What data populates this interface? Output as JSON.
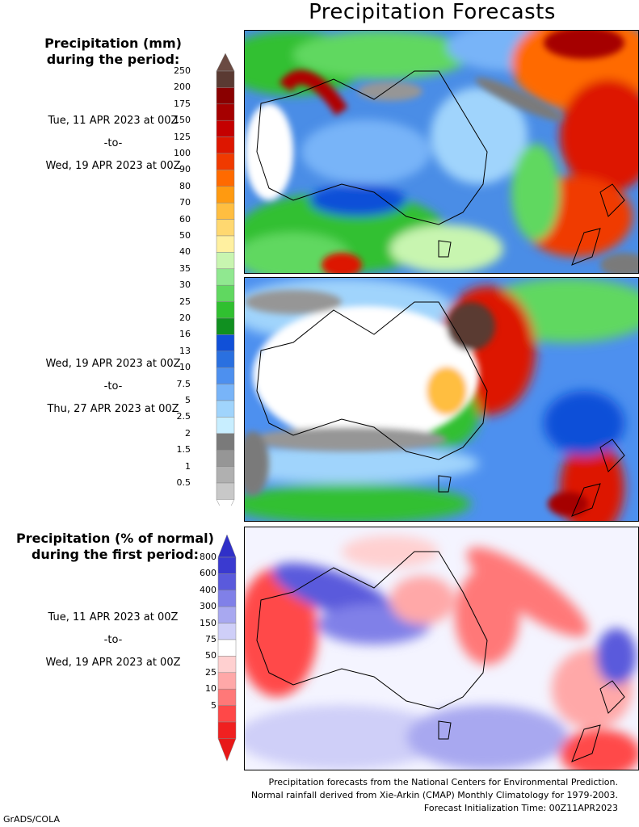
{
  "title": "Precipitation Forecasts",
  "mm_heading": [
    "Precipitation (mm)",
    "during the period:"
  ],
  "period1": {
    "start": "Tue, 11 APR 2023 at 00Z",
    "sep": "-to-",
    "end": "Wed, 19 APR 2023 at 00Z"
  },
  "period2": {
    "start": "Wed, 19 APR 2023 at 00Z",
    "sep": "-to-",
    "end": "Thu, 27 APR 2023 at 00Z"
  },
  "pct_heading": [
    "Precipitation (% of normal)",
    "during the first period:"
  ],
  "period3": {
    "start": "Tue, 11 APR 2023 at 00Z",
    "sep": "-to-",
    "end": "Wed, 19 APR 2023 at 00Z"
  },
  "mm_scale": {
    "labels": [
      "250",
      "200",
      "175",
      "150",
      "125",
      "100",
      "90",
      "80",
      "70",
      "60",
      "50",
      "40",
      "35",
      "30",
      "25",
      "20",
      "16",
      "13",
      "10",
      "7.5",
      "5",
      "2.5",
      "2",
      "1.5",
      "1",
      "0.5"
    ],
    "colors": [
      "#5a3a32",
      "#8a0000",
      "#a50000",
      "#c40000",
      "#dd1600",
      "#f03a00",
      "#ff6a00",
      "#ff9a10",
      "#ffbe40",
      "#ffd870",
      "#fff0a0",
      "#c8f5b0",
      "#90e890",
      "#60d860",
      "#30c030",
      "#109020",
      "#1050d8",
      "#2a70e0",
      "#4d90ef",
      "#78b4f8",
      "#a0d4fc",
      "#c8eeff",
      "#7a7a7a",
      "#969696",
      "#b0b0b0",
      "#c8c8c8"
    ],
    "top_cap": "#6a4a42",
    "bottom_cap": "#ffffff"
  },
  "pct_scale": {
    "labels": [
      "800",
      "600",
      "400",
      "300",
      "150",
      "75",
      "50",
      "25",
      "10",
      "5"
    ],
    "colors": [
      "#3a3ad0",
      "#5a5adc",
      "#8080e8",
      "#a8a8f0",
      "#cfcff8",
      "#ffffff",
      "#ffd0d0",
      "#ffa8a8",
      "#ff7878",
      "#ff4848",
      "#f02020"
    ],
    "top_cap": "#3030c8",
    "bottom_cap": "#e81818"
  },
  "footer": [
    "Precipitation forecasts from the National Centers for Environmental Prediction.",
    "Normal rainfall derived from Xie-Arkin (CMAP) Monthly Climatology for 1979-2003.",
    "Forecast Initialization Time: 00Z11APR2023"
  ],
  "credit": "GrADS/COLA"
}
